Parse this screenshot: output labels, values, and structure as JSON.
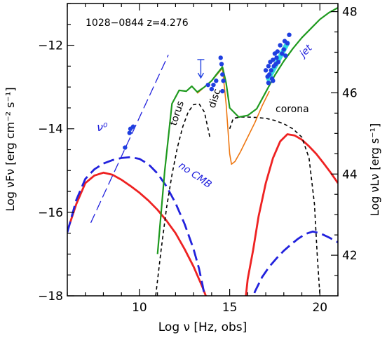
{
  "chart_data": {
    "type": "line",
    "annotation": "1028−0844  z=4.276",
    "xlabel": "Log ν  [Hz, obs]",
    "ylabel_left": "Log νFν  [erg cm⁻² s⁻¹]",
    "ylabel_right": "Log νLν  [erg s⁻¹]",
    "xlim": [
      6,
      21
    ],
    "ylim": [
      -18,
      -11
    ],
    "ylim_right": [
      41,
      48.2
    ],
    "x_ticks": [
      10,
      15,
      20
    ],
    "y_ticks_left": [
      -18,
      -16,
      -14,
      -12
    ],
    "y_ticks_right": [
      42,
      44,
      46,
      48
    ],
    "grid": false,
    "labels": {
      "nu0": "ν⁰",
      "torus": "torus",
      "disc": "disc",
      "corona": "corona",
      "jet": "jet",
      "no_cmb": "no CMB"
    },
    "colors": {
      "total": "#1f9a1f",
      "with_cmb": "#ee2222",
      "no_cmb": "#2222dd",
      "thermal": "#ee7711",
      "components": "#000000",
      "data": "#1f3fe0",
      "bowtie": "#33dddd"
    },
    "series": [
      {
        "key": "total",
        "x": [
          11.0,
          11.4,
          11.8,
          12.2,
          12.6,
          12.9,
          13.2,
          13.6,
          14.0,
          14.3,
          14.6,
          14.8,
          15.0,
          15.5,
          16.0,
          16.5,
          17.0,
          17.5,
          18.0,
          18.5,
          19.0,
          19.5,
          20.0,
          20.5,
          21.0
        ],
        "y": [
          -17.0,
          -15.0,
          -13.4,
          -13.08,
          -13.1,
          -12.98,
          -13.12,
          -13.0,
          -12.85,
          -12.68,
          -12.52,
          -12.9,
          -13.5,
          -13.72,
          -13.68,
          -13.52,
          -13.12,
          -12.72,
          -12.38,
          -12.08,
          -11.82,
          -11.6,
          -11.38,
          -11.22,
          -11.1
        ]
      },
      {
        "key": "with_cmb_low",
        "x": [
          6.0,
          6.5,
          7.0,
          7.5,
          8.0,
          8.5,
          9.0,
          9.5,
          10.0,
          10.5,
          11.0,
          11.5,
          12.0,
          12.5,
          13.0,
          13.5,
          13.9
        ],
        "y": [
          -16.45,
          -15.8,
          -15.3,
          -15.12,
          -15.05,
          -15.1,
          -15.22,
          -15.37,
          -15.53,
          -15.72,
          -15.94,
          -16.2,
          -16.5,
          -16.88,
          -17.3,
          -17.8,
          -18.25
        ]
      },
      {
        "key": "with_cmb_high",
        "x": [
          15.8,
          16.0,
          16.3,
          16.6,
          17.0,
          17.4,
          17.8,
          18.2,
          18.6,
          19.0,
          19.4,
          19.8,
          20.2,
          20.6,
          21.0
        ],
        "y": [
          -18.4,
          -17.6,
          -16.9,
          -16.1,
          -15.3,
          -14.7,
          -14.3,
          -14.13,
          -14.16,
          -14.26,
          -14.42,
          -14.6,
          -14.82,
          -15.05,
          -15.3
        ]
      },
      {
        "key": "no_cmb_low",
        "x": [
          6.0,
          6.5,
          7.0,
          7.5,
          8.0,
          8.5,
          9.0,
          9.5,
          10.0,
          10.5,
          11.0,
          11.5,
          12.0,
          12.5,
          13.0,
          13.3,
          13.5,
          13.7
        ],
        "y": [
          -16.48,
          -15.7,
          -15.2,
          -14.97,
          -14.83,
          -14.75,
          -14.7,
          -14.68,
          -14.72,
          -14.85,
          -15.07,
          -15.38,
          -15.78,
          -16.28,
          -16.88,
          -17.35,
          -17.75,
          -18.2
        ]
      },
      {
        "key": "no_cmb_high",
        "x": [
          16.1,
          16.4,
          16.8,
          17.2,
          17.6,
          18.0,
          18.4,
          18.8,
          19.2,
          19.6,
          20.0,
          20.5,
          21.0
        ],
        "y": [
          -18.3,
          -17.9,
          -17.55,
          -17.3,
          -17.1,
          -16.92,
          -16.77,
          -16.63,
          -16.52,
          -16.46,
          -16.5,
          -16.6,
          -16.72
        ]
      },
      {
        "key": "thermal",
        "x": [
          13.2,
          13.6,
          14.0,
          14.3,
          14.6,
          14.8,
          15.0,
          15.1,
          15.3,
          15.6,
          16.0,
          16.4,
          16.8,
          17.2
        ],
        "y": [
          -13.15,
          -13.0,
          -12.85,
          -12.7,
          -12.55,
          -13.4,
          -14.6,
          -14.85,
          -14.78,
          -14.55,
          -14.2,
          -13.85,
          -13.45,
          -13.1
        ]
      },
      {
        "key": "torus",
        "x": [
          10.9,
          11.2,
          11.5,
          11.8,
          12.1,
          12.4,
          12.7,
          13.0,
          13.3,
          13.6,
          13.9
        ],
        "y": [
          -18.0,
          -16.9,
          -15.9,
          -15.1,
          -14.45,
          -13.95,
          -13.6,
          -13.42,
          -13.4,
          -13.6,
          -14.2
        ]
      },
      {
        "key": "corona",
        "x": [
          15.0,
          15.2,
          15.6,
          16.0,
          16.5,
          17.0,
          17.5,
          18.0,
          18.5,
          19.0,
          19.4,
          19.7,
          19.85,
          20.0
        ],
        "y": [
          -14.0,
          -13.75,
          -13.72,
          -13.72,
          -13.73,
          -13.75,
          -13.8,
          -13.88,
          -14.0,
          -14.2,
          -14.7,
          -15.8,
          -17.0,
          -18.0
        ]
      },
      {
        "key": "nu0",
        "x": [
          7.3,
          11.6
        ],
        "y": [
          -16.25,
          -12.23
        ]
      }
    ],
    "points": {
      "x": [
        9.2,
        9.45,
        9.65,
        9.5,
        13.8,
        14.1,
        14.0,
        14.25,
        14.5,
        14.55,
        14.6,
        14.65,
        14.6,
        17.0,
        17.1,
        17.15,
        17.2,
        17.25,
        17.3,
        17.35,
        17.4,
        17.45,
        17.5,
        17.55,
        17.6,
        17.65,
        17.7,
        17.8,
        17.9,
        18.0,
        18.05,
        18.1,
        18.2,
        18.3,
        17.15,
        17.4
      ],
      "y": [
        -14.45,
        -14.1,
        -13.95,
        -14.0,
        -12.95,
        -12.95,
        -13.05,
        -12.85,
        -12.3,
        -12.45,
        -12.7,
        -12.85,
        -13.1,
        -12.6,
        -12.75,
        -12.5,
        -12.7,
        -12.4,
        -12.6,
        -12.8,
        -12.35,
        -12.5,
        -12.2,
        -12.45,
        -12.3,
        -12.15,
        -12.4,
        -12.0,
        -12.2,
        -12.1,
        -11.9,
        -12.25,
        -11.95,
        -11.75,
        -12.9,
        -12.85
      ]
    },
    "upper_limit": {
      "x": 13.4,
      "y": -12.78
    },
    "bowtie": {
      "x": [
        17.15,
        18.2
      ],
      "y": [
        -12.8,
        -11.95
      ]
    }
  }
}
